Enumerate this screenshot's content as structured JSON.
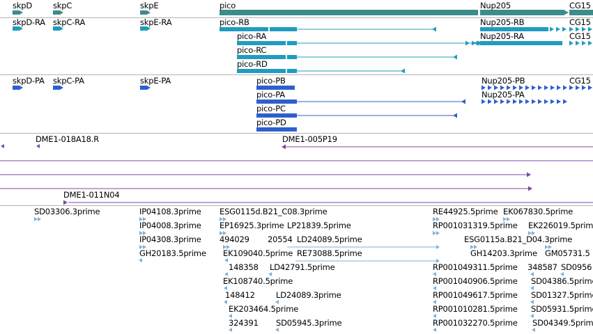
{
  "colors": {
    "gene": "#3c8c8c",
    "transcript": "#1f9cc0",
    "cds": "#2e5fcf",
    "clone": "#7b4aa8",
    "est": "#7fb2d8",
    "separator": "#b4b4b4"
  },
  "tracks": {
    "genes": {
      "labels": [
        "skpD",
        "skpC",
        "skpE",
        "pico",
        "Nup205",
        "CG15"
      ]
    },
    "transcripts": {
      "labels": [
        "skpD-RA",
        "skpC-RA",
        "skpE-RA",
        "pico-RB",
        "pico-RA",
        "pico-RC",
        "pico-RD",
        "Nup205-RB",
        "Nup205-RA",
        "CG15",
        "CG15"
      ]
    },
    "proteins": {
      "labels": [
        "skpD-PA",
        "skpC-PA",
        "skpE-PA",
        "pico-PB",
        "pico-PA",
        "pico-PC",
        "pico-PD",
        "Nup205-PB",
        "Nup205-PA",
        "CG15"
      ]
    },
    "clones": {
      "labels": [
        "DME1-018A18.R",
        "DME1-005P19",
        "DME1-011N04"
      ]
    },
    "ests": {
      "labels": [
        "SD03306.3prime",
        "IP04108.3prime",
        "IP04008.3prime",
        "IP04308.3prime",
        "GH20183.5prime",
        "ESG0115d.B21_C08.3prime",
        "EP16925.3prime",
        "LP21839.5prime",
        "494029",
        "20554",
        "LD24089.5prime",
        "EK109040.5prime",
        "RE73088.5prime",
        "148358",
        "LD42791.5prime",
        "EK108740.5prime",
        "148412",
        "LD24089.3prime",
        "EK203464.5prime",
        "324391",
        "SD05945.3prime",
        "RE44925.5prime",
        "EK067830.5prime",
        "RP001031319.5prime",
        "EK226019.5prime",
        "ESG0115a.B21_D04.3prime",
        "GH14203.3prime",
        "GM05731.5",
        "RP001049311.5prime",
        "348587",
        "SD0956",
        "RP001040906.5prime",
        "SD04386.5prime",
        "RP001049617.5prime",
        "SD01327.5prime",
        "RP001010281.5prime",
        "SD05931.5prime",
        "RP001032270.5prime",
        "SD04349.5prime"
      ]
    }
  }
}
